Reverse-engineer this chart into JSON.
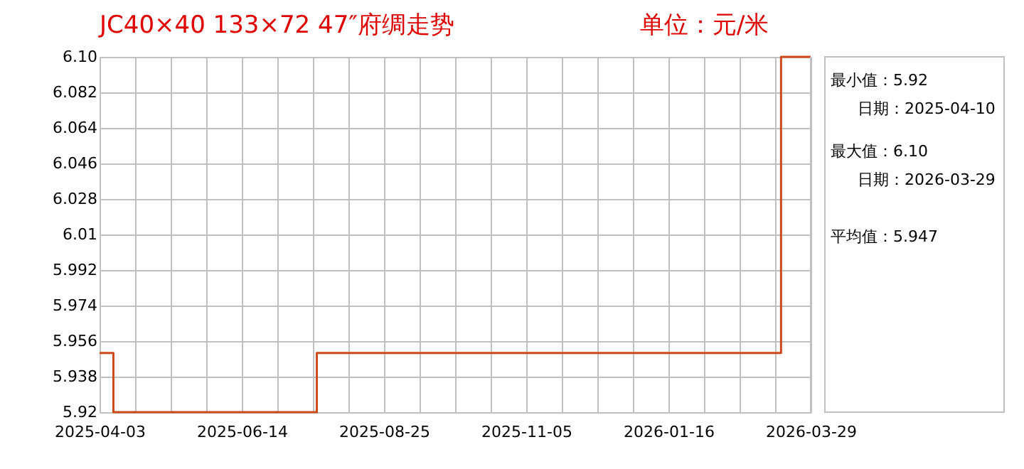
{
  "chart_data": {
    "type": "step",
    "title": "JC40×40 133×72 47″府绸走势",
    "subtitle": "单位：元/米",
    "x": [
      "2025-04-03",
      "2025-04-10",
      "2025-07-22",
      "2026-03-14",
      "2026-03-29"
    ],
    "series": [
      {
        "color": "#cc4a1a",
        "values": [
          5.95,
          5.92,
          5.95,
          6.1,
          6.1
        ]
      }
    ],
    "xlim": [
      "2025-04-03",
      "2026-03-29"
    ],
    "xticks": [
      "2025-04-03",
      {
        "value": "2025-04-21",
        "label": null
      },
      {
        "value": "2025-05-09",
        "label": null
      },
      {
        "value": "2025-05-27",
        "label": null
      },
      "2025-06-14",
      {
        "value": "2025-07-02",
        "label": null
      },
      {
        "value": "2025-07-20",
        "label": null
      },
      {
        "value": "2025-08-07",
        "label": null
      },
      "2025-08-25",
      {
        "value": "2025-09-12",
        "label": null
      },
      {
        "value": "2025-09-30",
        "label": null
      },
      {
        "value": "2025-10-18",
        "label": null
      },
      "2025-11-05",
      {
        "value": "2025-11-23",
        "label": null
      },
      {
        "value": "2025-12-11",
        "label": null
      },
      {
        "value": "2025-12-29",
        "label": null
      },
      "2026-01-16",
      {
        "value": "2026-02-03",
        "label": null
      },
      {
        "value": "2026-02-21",
        "label": null
      },
      {
        "value": "2026-03-11",
        "label": null
      },
      "2026-03-29"
    ],
    "ylim": [
      5.92,
      6.1
    ],
    "yticks": [
      5.92,
      5.938,
      5.956,
      5.974,
      5.992,
      6.01,
      6.028,
      6.046,
      6.064,
      6.082,
      {
        "value": 6.1,
        "label": "6.10"
      }
    ],
    "grid": true,
    "annotations": [
      "最小值：5.92",
      "日期：2025-04-10",
      "最大值：6.10",
      "日期：2026-03-29",
      "平均值：5.947"
    ]
  }
}
